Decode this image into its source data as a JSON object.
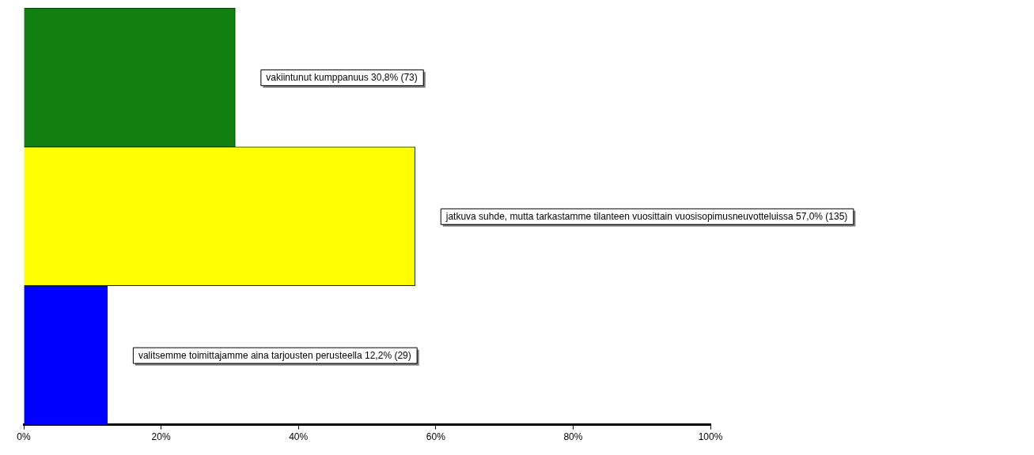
{
  "chart_data": {
    "type": "bar",
    "orientation": "horizontal",
    "categories": [
      "vakiintunut kumppanuus",
      "jatkuva suhde, mutta tarkastamme tilanteen vuosittain vuosisopimusneuvotteluissa",
      "valitsemme toimittajamme aina tarjousten perusteella"
    ],
    "values": [
      30.8,
      57.0,
      12.2
    ],
    "value_labels": [
      "30,8% (73)",
      "57,0% (135)",
      "12,2% (29)"
    ],
    "colors": [
      "#118011",
      "#ffff00",
      "#0000ff"
    ],
    "xlim": [
      0,
      100
    ],
    "xticks": [
      {
        "value": 0,
        "label": "0%"
      },
      {
        "value": 20,
        "label": "20%"
      },
      {
        "value": 40,
        "label": "40%"
      },
      {
        "value": 60,
        "label": "60%"
      },
      {
        "value": 80,
        "label": "80%"
      },
      {
        "value": 100,
        "label": "100%"
      }
    ],
    "grid": false,
    "legend": false
  }
}
